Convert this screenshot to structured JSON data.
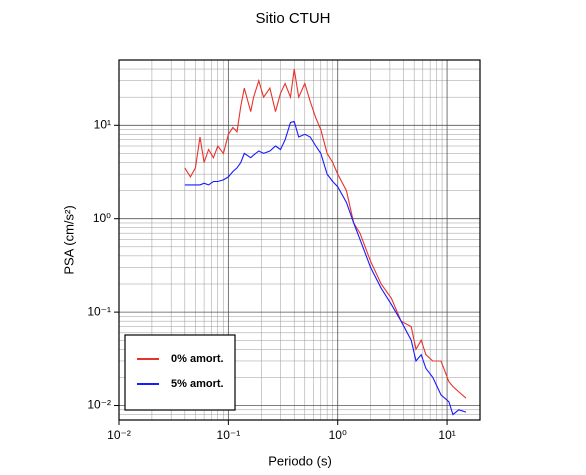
{
  "chart_data": {
    "type": "line",
    "title": "Sitio CTUH",
    "x_label": "Periodo (s)",
    "y_label": "PSA (cm/s²)",
    "log_x": true,
    "log_y": true,
    "grid": true,
    "minor_grid": true,
    "legend": "lower left",
    "xlim": [
      0.01,
      20
    ],
    "ylim": [
      0.007,
      50
    ],
    "xticks": [
      {
        "value": 0.01,
        "label": "10⁻²"
      },
      {
        "value": 0.1,
        "label": "10⁻¹"
      },
      {
        "value": 1,
        "label": "10⁰"
      },
      {
        "value": 10,
        "label": "10¹"
      }
    ],
    "yticks": [
      {
        "value": 0.01,
        "label": "10⁻²"
      },
      {
        "value": 0.1,
        "label": "10⁻¹"
      },
      {
        "value": 1,
        "label": "10⁰"
      },
      {
        "value": 10,
        "label": "10¹"
      }
    ],
    "x": [
      0.04,
      0.045,
      0.05,
      0.055,
      0.06,
      0.066,
      0.073,
      0.08,
      0.09,
      0.1,
      0.11,
      0.12,
      0.13,
      0.14,
      0.16,
      0.17,
      0.19,
      0.21,
      0.24,
      0.27,
      0.3,
      0.33,
      0.37,
      0.4,
      0.44,
      0.5,
      0.56,
      0.63,
      0.7,
      0.8,
      0.9,
      1.0,
      1.2,
      1.4,
      1.6,
      2.0,
      2.5,
      3.1,
      3.8,
      4.7,
      5.2,
      5.8,
      6.4,
      7.4,
      8.8,
      10.4,
      11.3,
      12.8,
      14.9
    ],
    "series": [
      {
        "name": "0% amort.",
        "color": "#e8332a",
        "values": [
          3.5,
          2.8,
          3.5,
          7.5,
          4,
          5.5,
          4.5,
          6,
          5,
          8,
          9.5,
          8.5,
          16,
          25,
          14,
          20,
          30,
          20,
          25,
          14,
          22,
          28,
          20,
          40,
          20,
          28,
          18,
          12,
          9,
          5,
          4,
          3,
          2,
          0.9,
          0.7,
          0.35,
          0.2,
          0.14,
          0.08,
          0.07,
          0.04,
          0.05,
          0.035,
          0.03,
          0.03,
          0.018,
          0.016,
          0.014,
          0.012
        ]
      },
      {
        "name": "5% amort.",
        "color": "#1a1aff",
        "values": [
          2.3,
          2.3,
          2.3,
          2.3,
          2.4,
          2.3,
          2.5,
          2.5,
          2.6,
          2.8,
          3.2,
          3.5,
          4.0,
          5.0,
          4.5,
          4.8,
          5.3,
          5.0,
          5.3,
          6.0,
          5.5,
          7.0,
          10.7,
          11,
          7.5,
          8,
          7.5,
          6,
          5,
          3,
          2.5,
          2.2,
          1.5,
          0.9,
          0.6,
          0.3,
          0.18,
          0.12,
          0.08,
          0.05,
          0.03,
          0.035,
          0.025,
          0.02,
          0.013,
          0.011,
          0.008,
          0.009,
          0.0085
        ]
      }
    ]
  }
}
